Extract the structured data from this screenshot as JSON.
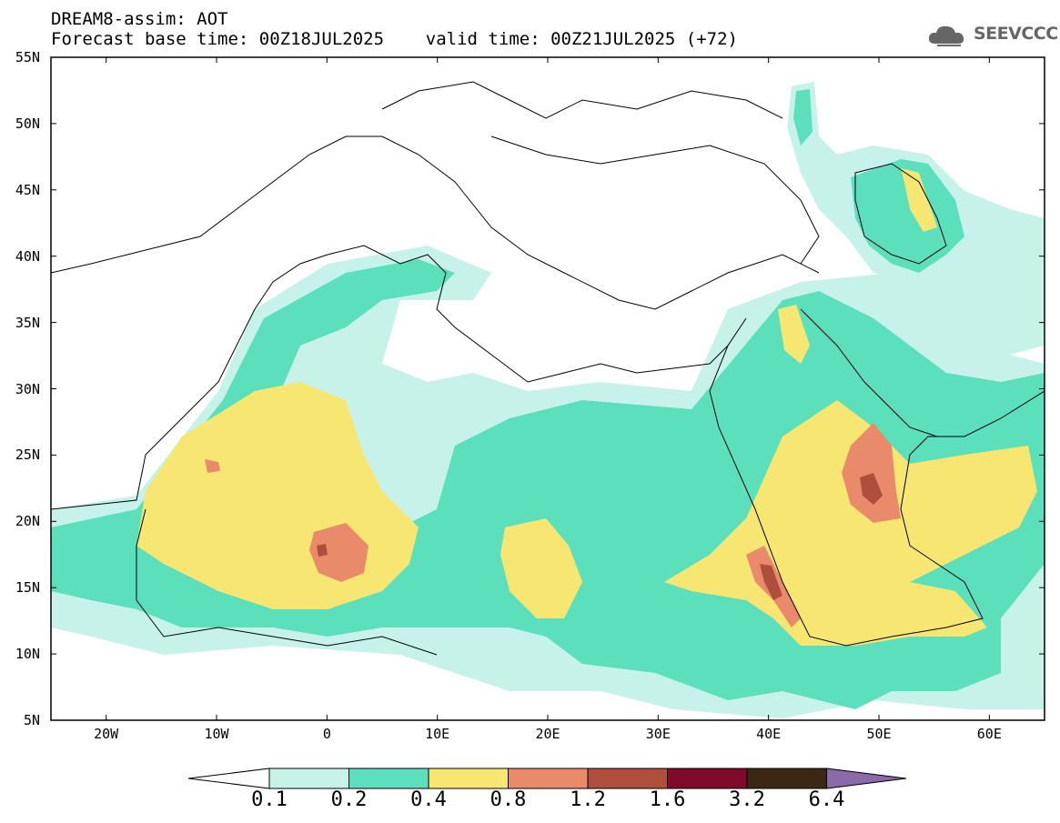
{
  "header": {
    "line1": "DREAM8-assim: AOT",
    "line2": "Forecast base time: 00Z18JUL2025    valid time: 00Z21JUL2025 (+72)",
    "logo_text": "SEEVCCC"
  },
  "map": {
    "lon_range": [
      -25,
      65
    ],
    "lat_range": [
      5,
      55
    ],
    "lat_labels": [
      "55N",
      "50N",
      "45N",
      "40N",
      "35N",
      "30N",
      "25N",
      "20N",
      "15N",
      "10N",
      "5N"
    ],
    "lat_values": [
      55,
      50,
      45,
      40,
      35,
      30,
      25,
      20,
      15,
      10,
      5
    ],
    "lon_labels": [
      "20W",
      "10W",
      "0",
      "10E",
      "20E",
      "30E",
      "40E",
      "50E",
      "60E"
    ],
    "lon_values": [
      -20,
      -10,
      0,
      10,
      20,
      30,
      40,
      50,
      60
    ]
  },
  "colorbar": {
    "levels": [
      "0.1",
      "0.2",
      "0.4",
      "0.8",
      "1.2",
      "1.6",
      "3.2",
      "6.4"
    ],
    "colors": [
      "#c6f2ea",
      "#5ce0bb",
      "#f7e772",
      "#e98a6a",
      "#b04e3e",
      "#7f0a2a",
      "#3c2614",
      "#8a6aa8"
    ],
    "below_color": "#ffffff"
  },
  "legend_palette": {
    "0.1-0.2": "#c6f2ea",
    "0.2-0.4": "#5ce0bb",
    "0.4-0.8": "#f7e772",
    "0.8-1.2": "#e98a6a",
    "1.2-1.6": "#b04e3e"
  }
}
